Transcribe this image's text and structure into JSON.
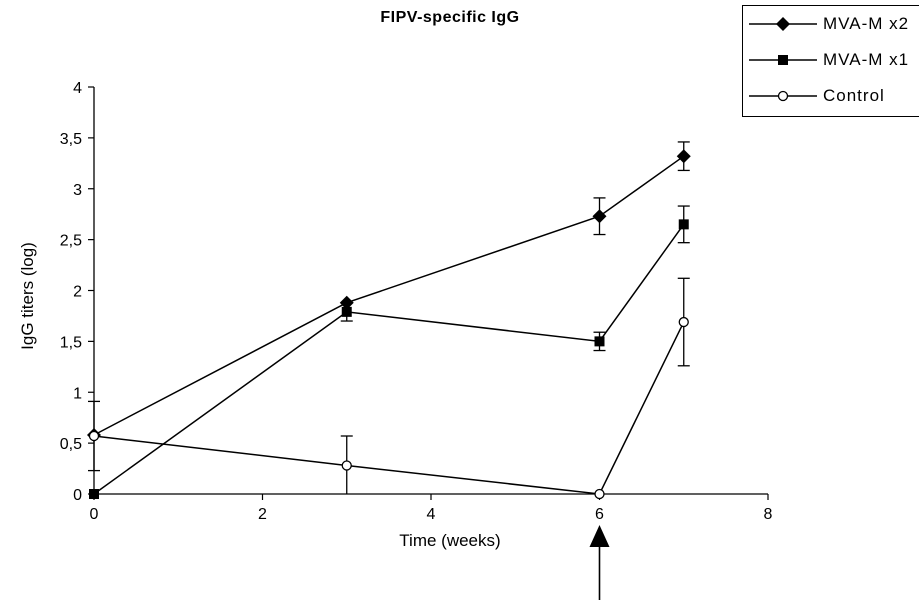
{
  "chart_data": {
    "type": "line",
    "title": "FIPV-specific IgG",
    "xlabel": "Time (weeks)",
    "ylabel": "IgG titers (log)",
    "xlim": [
      0,
      8
    ],
    "ylim": [
      0,
      4
    ],
    "x_ticks": [
      "0",
      "2",
      "4",
      "6",
      "8"
    ],
    "y_ticks": [
      "0",
      "0,5",
      "1",
      "1,5",
      "2",
      "2,5",
      "3",
      "3,5",
      "4"
    ],
    "grid": false,
    "legend_position": "top-right",
    "series": [
      {
        "name": "MVA-M x2",
        "marker": "diamond-filled",
        "x": [
          0,
          3,
          6,
          7
        ],
        "y": [
          0.58,
          1.88,
          2.73,
          3.32
        ],
        "error": [
          null,
          null,
          0.18,
          0.14
        ]
      },
      {
        "name": "MVA-M x1",
        "marker": "square-filled",
        "x": [
          0,
          3,
          6,
          7
        ],
        "y": [
          0.0,
          1.79,
          1.5,
          2.65
        ],
        "error": [
          null,
          0.09,
          0.09,
          0.18
        ]
      },
      {
        "name": "Control",
        "marker": "circle-open",
        "x": [
          0,
          3,
          6,
          7
        ],
        "y": [
          0.57,
          0.28,
          0.0,
          1.69
        ],
        "error": [
          0.34,
          0.29,
          null,
          0.43
        ]
      }
    ],
    "annotations": [
      {
        "type": "arrow",
        "x": 6,
        "direction": "up",
        "description": "boost at week 6"
      }
    ]
  }
}
